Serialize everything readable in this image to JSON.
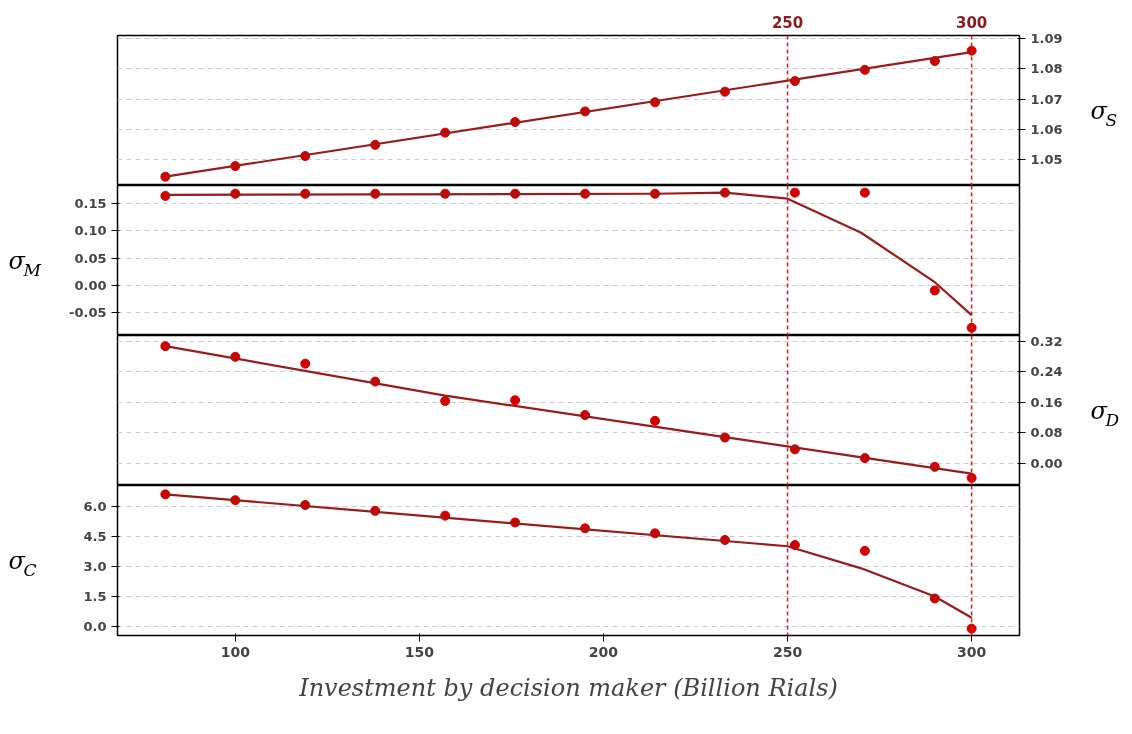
{
  "chart_data": [
    {
      "type": "scatter",
      "ylabel": "σ$_{S}$",
      "xlim": [
        68,
        313
      ],
      "ylim": [
        1.0416,
        1.091
      ],
      "yticks": [
        1.05,
        1.06,
        1.07,
        1.08,
        1.09
      ],
      "grid": "y",
      "tick_labels": "y",
      "ref_lines": [
        {
          "axis": "x",
          "value": 250,
          "label": "250",
          "color": "#d42020",
          "line_style": "dashed"
        },
        {
          "axis": "x",
          "value": 300,
          "label": "300",
          "color": "#d42020",
          "line_style": "dashed"
        }
      ],
      "series": [
        {
          "marker": "circle",
          "color": "#d40000",
          "x": [
            81,
            100,
            119,
            138,
            157,
            176,
            195,
            214,
            233,
            252,
            271,
            290,
            300
          ],
          "values": [
            1.0445,
            1.048,
            1.0513,
            1.055,
            1.059,
            1.0625,
            1.066,
            1.069,
            1.0725,
            1.076,
            1.0797,
            1.0826,
            1.086
          ]
        },
        {
          "type": "line",
          "color": "#9b1b1b",
          "x": [
            81,
            300
          ],
          "values": [
            1.0445,
            1.0855
          ]
        }
      ]
    },
    {
      "type": "scatter",
      "ylabel": "σ$_{M}$",
      "xlim": [
        68,
        313
      ],
      "ylim": [
        -0.091,
        0.182
      ],
      "yticks": [
        {
          "value": -0.05,
          "label": "-0.05"
        },
        {
          "value": 0,
          "label": "0.00"
        },
        0.05,
        {
          "value": 0.1,
          "label": "0.10"
        },
        0.15
      ],
      "grid": "y",
      "tick_labels": "y",
      "ref_lines": [
        {
          "axis": "x",
          "value": 250,
          "label": null,
          "color": "#d42020",
          "line_style": "dashed"
        },
        {
          "axis": "x",
          "value": 300,
          "label": null,
          "color": "#d42020",
          "line_style": "dashed"
        }
      ],
      "series": [
        {
          "marker": "circle",
          "color": "#d40000",
          "x": [
            81,
            100,
            119,
            138,
            157,
            176,
            195,
            214,
            233,
            252,
            271,
            290,
            300
          ],
          "values": [
            0.163,
            0.167,
            0.167,
            0.167,
            0.167,
            0.167,
            0.167,
            0.167,
            0.169,
            0.169,
            0.169,
            -0.009,
            -0.077
          ]
        },
        {
          "type": "line",
          "color": "#9b1b1b",
          "x": [
            81,
            214,
            233,
            250,
            270,
            290,
            300
          ],
          "values": [
            0.165,
            0.167,
            0.169,
            0.158,
            0.096,
            0.006,
            -0.054
          ]
        }
      ]
    },
    {
      "type": "scatter",
      "ylabel": "σ$_{D}$",
      "xlim": [
        68,
        313
      ],
      "ylim": [
        -0.059,
        0.335
      ],
      "yticks": [
        {
          "value": 0,
          "label": "0.00"
        },
        0.08,
        0.16,
        0.24,
        0.32
      ],
      "grid": "y",
      "tick_labels": "y",
      "ref_lines": [
        {
          "axis": "x",
          "value": 250,
          "label": null,
          "color": "#d42020",
          "line_style": "dashed"
        },
        {
          "axis": "x",
          "value": 300,
          "label": null,
          "color": "#d42020",
          "line_style": "dashed"
        }
      ],
      "series": [
        {
          "marker": "circle",
          "color": "#d40000",
          "x": [
            81,
            100,
            119,
            138,
            157,
            176,
            195,
            214,
            233,
            252,
            271,
            290,
            300
          ],
          "values": [
            0.307,
            0.279,
            0.261,
            0.214,
            0.163,
            0.165,
            0.126,
            0.111,
            0.067,
            0.036,
            0.013,
            -0.01,
            -0.039
          ]
        },
        {
          "type": "line",
          "color": "#9b1b1b",
          "x": [
            81,
            157,
            233,
            300
          ],
          "values": [
            0.307,
            0.177,
            0.068,
            -0.028
          ]
        }
      ]
    },
    {
      "type": "scatter",
      "ylabel": "σ$_{C}$",
      "xlabel": "Investment by decision maker (Billion Rials)",
      "xlim": [
        68,
        313
      ],
      "ylim": [
        -0.44,
        7.02
      ],
      "xticks": [
        100,
        150,
        200,
        250,
        300
      ],
      "yticks": [
        {
          "value": 0,
          "label": "0.0"
        },
        1.5,
        {
          "value": 3,
          "label": "3.0"
        },
        4.5,
        {
          "value": 6,
          "label": "6.0"
        }
      ],
      "grid": "y",
      "ref_lines": [
        {
          "axis": "x",
          "value": 250,
          "label": null,
          "color": "#d42020",
          "line_style": "dashed"
        },
        {
          "axis": "x",
          "value": 300,
          "label": null,
          "color": "#d42020",
          "line_style": "dashed"
        }
      ],
      "series": [
        {
          "marker": "circle",
          "color": "#d40000",
          "x": [
            81,
            100,
            119,
            138,
            157,
            176,
            195,
            214,
            233,
            252,
            271,
            290,
            300
          ],
          "values": [
            6.58,
            6.29,
            6.05,
            5.76,
            5.52,
            5.18,
            4.89,
            4.64,
            4.31,
            4.06,
            3.77,
            1.4,
            -0.1
          ]
        },
        {
          "type": "line",
          "color": "#9b1b1b",
          "x": [
            81,
            250,
            270,
            290,
            300
          ],
          "values": [
            6.58,
            4.0,
            2.9,
            1.5,
            0.44
          ]
        }
      ]
    }
  ]
}
